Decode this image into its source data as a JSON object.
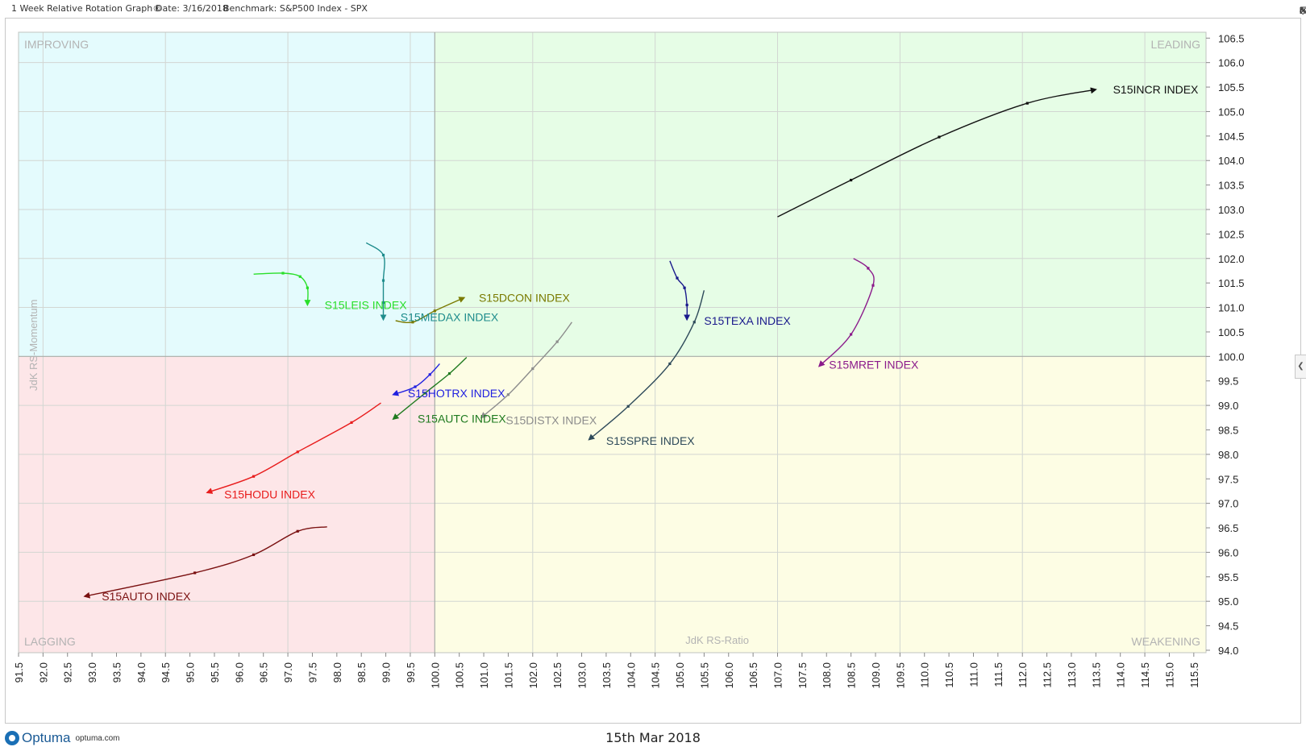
{
  "header": {
    "chart_name": "1 Week Relative Rotation Graph®",
    "date": "Date: 3/16/2018",
    "benchmark": "Benchmark:  S&P500 Index - SPX"
  },
  "footer": {
    "logo_text": "Optuma",
    "logo_url": "optuma.com",
    "date_label": "15th Mar 2018"
  },
  "colors": {
    "improving": "#e4fbfd",
    "leading": "#e6fde6",
    "lagging": "#fde6e8",
    "weakening": "#fdfde4"
  },
  "chart_data": {
    "type": "scatter",
    "subtype": "relative-rotation-graph",
    "xlabel": "JdK RS-Ratio",
    "ylabel": "JdK RS-Momentum",
    "xlim": [
      91.5,
      115.75
    ],
    "ylim": [
      93.95,
      106.62
    ],
    "x_ticks": [
      "91.5",
      "92.0",
      "92.5",
      "93.0",
      "93.5",
      "94.0",
      "94.5",
      "95.0",
      "95.5",
      "96.0",
      "96.5",
      "97.0",
      "97.5",
      "98.0",
      "98.5",
      "99.0",
      "99.5",
      "100.0",
      "100.5",
      "101.0",
      "101.5",
      "102.0",
      "102.5",
      "103.0",
      "103.5",
      "104.0",
      "104.5",
      "105.0",
      "105.5",
      "106.0",
      "106.5",
      "107.0",
      "107.5",
      "108.0",
      "108.5",
      "109.0",
      "109.5",
      "110.0",
      "110.5",
      "111.0",
      "111.5",
      "112.0",
      "112.5",
      "113.0",
      "113.5",
      "114.0",
      "114.5",
      "115.0",
      "115.5"
    ],
    "y_ticks": [
      "94.0",
      "94.5",
      "95.0",
      "95.5",
      "96.0",
      "96.5",
      "97.0",
      "97.5",
      "98.0",
      "98.5",
      "99.0",
      "99.5",
      "100.0",
      "100.5",
      "101.0",
      "101.5",
      "102.0",
      "102.5",
      "103.0",
      "103.5",
      "104.0",
      "104.5",
      "105.0",
      "105.5",
      "106.0",
      "106.5"
    ],
    "quadrants": {
      "improving": "IMPROVING",
      "leading": "LEADING",
      "lagging": "LAGGING",
      "weakening": "WEAKENING"
    },
    "series": [
      {
        "name": "S15INCR INDEX",
        "color": "#111111",
        "points": [
          [
            107.0,
            102.85
          ],
          [
            108.5,
            103.6
          ],
          [
            110.3,
            104.48
          ],
          [
            112.1,
            105.17
          ],
          [
            113.5,
            105.45
          ]
        ]
      },
      {
        "name": "S15MRET INDEX",
        "color": "#8b1a8b",
        "points": [
          [
            108.55,
            102.0
          ],
          [
            108.85,
            101.8
          ],
          [
            108.95,
            101.45
          ],
          [
            108.5,
            100.45
          ],
          [
            107.85,
            99.8
          ]
        ]
      },
      {
        "name": "S15TEXA INDEX",
        "color": "#1a1a8c",
        "points": [
          [
            104.8,
            101.95
          ],
          [
            104.95,
            101.6
          ],
          [
            105.1,
            101.4
          ],
          [
            105.15,
            101.05
          ],
          [
            105.15,
            100.75
          ]
        ]
      },
      {
        "name": "S15SPRE INDEX",
        "color": "#2e4a5a",
        "points": [
          [
            105.5,
            101.35
          ],
          [
            105.3,
            100.7
          ],
          [
            104.8,
            99.85
          ],
          [
            103.95,
            98.98
          ],
          [
            103.15,
            98.3
          ]
        ]
      },
      {
        "name": "S15DISTX INDEX",
        "color": "#8c8c8c",
        "points": [
          [
            102.8,
            100.7
          ],
          [
            102.5,
            100.3
          ],
          [
            102.0,
            99.75
          ],
          [
            101.5,
            99.22
          ],
          [
            100.95,
            98.75
          ]
        ]
      },
      {
        "name": "S15DCON INDEX",
        "color": "#7a7a00",
        "points": [
          [
            99.2,
            100.73
          ],
          [
            99.55,
            100.7
          ],
          [
            100.0,
            100.93
          ],
          [
            100.6,
            101.2
          ]
        ]
      },
      {
        "name": "S15HOTRX INDEX",
        "color": "#2020e0",
        "points": [
          [
            100.1,
            99.85
          ],
          [
            99.9,
            99.63
          ],
          [
            99.6,
            99.38
          ],
          [
            99.15,
            99.22
          ]
        ]
      },
      {
        "name": "S15AUTC INDEX",
        "color": "#1f7a1f",
        "points": [
          [
            100.65,
            99.98
          ],
          [
            100.3,
            99.65
          ],
          [
            99.8,
            99.25
          ],
          [
            99.15,
            98.72
          ]
        ]
      },
      {
        "name": "S15HODU INDEX",
        "color": "#e81c1c",
        "points": [
          [
            98.9,
            99.05
          ],
          [
            98.3,
            98.65
          ],
          [
            97.2,
            98.05
          ],
          [
            96.3,
            97.55
          ],
          [
            95.35,
            97.22
          ]
        ]
      },
      {
        "name": "S15AUTO INDEX",
        "color": "#7a1010",
        "points": [
          [
            97.8,
            96.52
          ],
          [
            97.2,
            96.43
          ],
          [
            96.3,
            95.95
          ],
          [
            95.1,
            95.58
          ],
          [
            92.85,
            95.1
          ]
        ]
      },
      {
        "name": "S15LEIS INDEX",
        "color": "#2adf2a",
        "points": [
          [
            96.3,
            101.68
          ],
          [
            96.9,
            101.7
          ],
          [
            97.25,
            101.63
          ],
          [
            97.4,
            101.4
          ],
          [
            97.4,
            101.05
          ]
        ]
      },
      {
        "name": "S15MEDAX INDEX",
        "color": "#1e8c8c",
        "points": [
          [
            98.6,
            102.32
          ],
          [
            98.95,
            102.07
          ],
          [
            98.95,
            101.55
          ],
          [
            98.95,
            101.1
          ],
          [
            98.95,
            100.75
          ]
        ]
      }
    ],
    "labels": [
      {
        "series": "S15INCR INDEX",
        "x": 113.85,
        "y": 105.45
      },
      {
        "series": "S15MRET INDEX",
        "x": 108.05,
        "y": 99.83
      },
      {
        "series": "S15TEXA INDEX",
        "x": 105.5,
        "y": 100.73
      },
      {
        "series": "S15SPRE INDEX",
        "x": 103.5,
        "y": 98.28
      },
      {
        "series": "S15DISTX INDEX",
        "x": 101.45,
        "y": 98.7
      },
      {
        "series": "S15DCON INDEX",
        "x": 100.9,
        "y": 101.2
      },
      {
        "series": "S15HOTRX INDEX",
        "x": 99.45,
        "y": 99.25
      },
      {
        "series": "S15AUTC INDEX",
        "x": 99.65,
        "y": 98.73
      },
      {
        "series": "S15HODU INDEX",
        "x": 95.7,
        "y": 97.18
      },
      {
        "series": "S15AUTO INDEX",
        "x": 93.2,
        "y": 95.1
      },
      {
        "series": "S15LEIS INDEX",
        "x": 97.75,
        "y": 101.05
      },
      {
        "series": "S15MEDAX INDEX",
        "x": 99.3,
        "y": 100.8
      }
    ],
    "grid": true
  }
}
